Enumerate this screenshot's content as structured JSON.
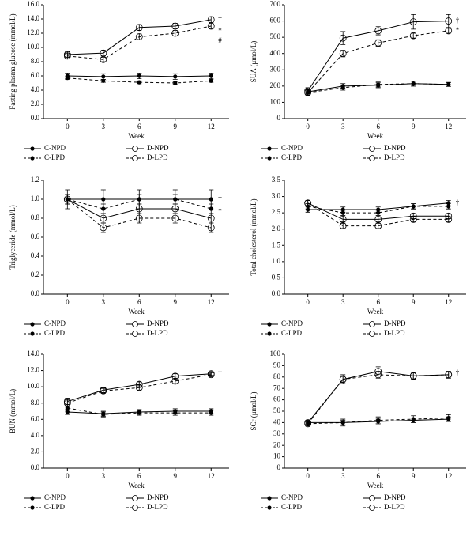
{
  "chart_data": [
    {
      "type": "line",
      "ylabel": "Fasting plasma glucose (mmol/L)",
      "xlabel": "Week",
      "x": [
        0,
        3,
        6,
        9,
        12
      ],
      "xlim": [
        -2,
        13.5
      ],
      "xticks": [
        0,
        3,
        6,
        9,
        12
      ],
      "ylim": [
        0,
        16
      ],
      "yticks": [
        {
          "value": 0,
          "label": "0.0"
        },
        {
          "value": 2,
          "label": "2.0"
        },
        {
          "value": 4,
          "label": "4.0"
        },
        {
          "value": 6,
          "label": "6.0"
        },
        {
          "value": 8,
          "label": "8.0"
        },
        {
          "value": 10,
          "label": "10.0"
        },
        {
          "value": 12,
          "label": "12.0"
        },
        {
          "value": 14,
          "label": "14.0"
        },
        {
          "value": 16,
          "label": "16.0"
        }
      ],
      "series": [
        {
          "name": "C-NPD",
          "color": "#000000",
          "line_style": "solid",
          "marker": "filled",
          "values": [
            6.0,
            5.9,
            6.0,
            5.9,
            6.0
          ],
          "errors": [
            0.4,
            0.4,
            0.4,
            0.4,
            0.4
          ]
        },
        {
          "name": "D-NPD",
          "color": "#000000",
          "line_style": "solid",
          "marker": "open",
          "values": [
            9.0,
            9.2,
            12.8,
            13.0,
            13.9
          ],
          "errors": [
            0.4,
            0.4,
            0.4,
            0.4,
            0.4
          ]
        },
        {
          "name": "C-LPD",
          "color": "#000000",
          "line_style": "dashed",
          "marker": "filled",
          "values": [
            5.7,
            5.3,
            5.1,
            5.0,
            5.3
          ],
          "errors": [
            0.2,
            0.2,
            0.2,
            0.2,
            0.2
          ]
        },
        {
          "name": "D-LPD",
          "color": "#000000",
          "line_style": "dashed",
          "marker": "open",
          "values": [
            8.8,
            8.3,
            11.5,
            12.0,
            13.0
          ],
          "errors": [
            0.4,
            0.3,
            0.4,
            0.4,
            0.4
          ]
        }
      ],
      "annotations": [
        "†",
        "*",
        "#"
      ]
    },
    {
      "type": "line",
      "ylabel": "SUA (μmol/L)",
      "xlabel": "Week",
      "x": [
        0,
        3,
        6,
        9,
        12
      ],
      "xlim": [
        -2,
        13.5
      ],
      "xticks": [
        0,
        3,
        6,
        9,
        12
      ],
      "ylim": [
        0,
        700
      ],
      "yticks": [
        0,
        100,
        200,
        300,
        400,
        500,
        600,
        700
      ],
      "series": [
        {
          "name": "C-NPD",
          "color": "#000000",
          "line_style": "solid",
          "marker": "filled",
          "values": [
            165,
            200,
            205,
            215,
            210
          ],
          "errors": [
            15,
            15,
            15,
            15,
            12
          ]
        },
        {
          "name": "D-NPD",
          "color": "#000000",
          "line_style": "solid",
          "marker": "open",
          "values": [
            170,
            495,
            540,
            595,
            600
          ],
          "errors": [
            20,
            40,
            25,
            45,
            40
          ]
        },
        {
          "name": "C-LPD",
          "color": "#000000",
          "line_style": "dashed",
          "marker": "filled",
          "values": [
            160,
            190,
            210,
            215,
            210
          ],
          "errors": [
            15,
            15,
            15,
            15,
            12
          ]
        },
        {
          "name": "D-LPD",
          "color": "#000000",
          "line_style": "dashed",
          "marker": "open",
          "values": [
            160,
            400,
            465,
            510,
            540
          ],
          "errors": [
            20,
            20,
            20,
            15,
            15
          ]
        }
      ],
      "annotations": [
        "†",
        "*"
      ]
    },
    {
      "type": "line",
      "ylabel": "Triglyceride (mmol/L)",
      "xlabel": "Week",
      "x": [
        0,
        3,
        6,
        9,
        12
      ],
      "xlim": [
        -2,
        13.5
      ],
      "xticks": [
        0,
        3,
        6,
        9,
        12
      ],
      "ylim": [
        0,
        1.2
      ],
      "yticks": [
        {
          "value": 0,
          "label": "0.0"
        },
        {
          "value": 0.2,
          "label": "0.2"
        },
        {
          "value": 0.4,
          "label": "0.4"
        },
        {
          "value": 0.6,
          "label": "0.6"
        },
        {
          "value": 0.8,
          "label": "0.8"
        },
        {
          "value": 1,
          "label": "1.0"
        },
        {
          "value": 1.2,
          "label": "1.2"
        }
      ],
      "series": [
        {
          "name": "C-NPD",
          "color": "#000000",
          "line_style": "solid",
          "marker": "filled",
          "values": [
            1.0,
            1.0,
            1.0,
            1.0,
            1.0
          ],
          "errors": [
            0.1,
            0.1,
            0.1,
            0.1,
            0.1
          ]
        },
        {
          "name": "D-NPD",
          "color": "#000000",
          "line_style": "solid",
          "marker": "open",
          "values": [
            1.0,
            0.8,
            0.9,
            0.9,
            0.8
          ],
          "errors": [
            0.05,
            0.05,
            0.05,
            0.05,
            0.05
          ]
        },
        {
          "name": "C-LPD",
          "color": "#000000",
          "line_style": "dashed",
          "marker": "filled",
          "values": [
            1.0,
            0.9,
            1.0,
            1.0,
            0.9
          ],
          "errors": [
            0.05,
            0.05,
            0.05,
            0.05,
            0.05
          ]
        },
        {
          "name": "D-LPD",
          "color": "#000000",
          "line_style": "dashed",
          "marker": "open",
          "values": [
            1.0,
            0.7,
            0.8,
            0.8,
            0.7
          ],
          "errors": [
            0.05,
            0.05,
            0.05,
            0.05,
            0.05
          ]
        }
      ],
      "annotations": [
        "†",
        "*"
      ]
    },
    {
      "type": "line",
      "ylabel": "Total cholesterol (mmol/L)",
      "xlabel": "Week",
      "x": [
        0,
        3,
        6,
        9,
        12
      ],
      "xlim": [
        -2,
        13.5
      ],
      "xticks": [
        0,
        3,
        6,
        9,
        12
      ],
      "ylim": [
        0,
        3.5
      ],
      "yticks": [
        {
          "value": 0,
          "label": "0.0"
        },
        {
          "value": 0.5,
          "label": "0.5"
        },
        {
          "value": 1,
          "label": "1.0"
        },
        {
          "value": 1.5,
          "label": "1.5"
        },
        {
          "value": 2,
          "label": "2.0"
        },
        {
          "value": 2.5,
          "label": "2.5"
        },
        {
          "value": 3,
          "label": "3.0"
        },
        {
          "value": 3.5,
          "label": "3.5"
        }
      ],
      "series": [
        {
          "name": "C-NPD",
          "color": "#000000",
          "line_style": "solid",
          "marker": "filled",
          "values": [
            2.6,
            2.6,
            2.6,
            2.7,
            2.8
          ],
          "errors": [
            0.08,
            0.08,
            0.08,
            0.08,
            0.08
          ]
        },
        {
          "name": "D-NPD",
          "color": "#000000",
          "line_style": "solid",
          "marker": "open",
          "values": [
            2.8,
            2.3,
            2.3,
            2.4,
            2.4
          ],
          "errors": [
            0.08,
            0.08,
            0.08,
            0.08,
            0.08
          ]
        },
        {
          "name": "C-LPD",
          "color": "#000000",
          "line_style": "dashed",
          "marker": "filled",
          "values": [
            2.7,
            2.5,
            2.5,
            2.7,
            2.7
          ],
          "errors": [
            0.08,
            0.08,
            0.08,
            0.08,
            0.08
          ]
        },
        {
          "name": "D-LPD",
          "color": "#000000",
          "line_style": "dashed",
          "marker": "open",
          "values": [
            2.8,
            2.1,
            2.1,
            2.3,
            2.3
          ],
          "errors": [
            0.08,
            0.08,
            0.08,
            0.08,
            0.08
          ]
        }
      ],
      "annotations": [
        "†"
      ]
    },
    {
      "type": "line",
      "ylabel": "BUN (mmol/L)",
      "xlabel": "Week",
      "x": [
        0,
        3,
        6,
        9,
        12
      ],
      "xlim": [
        -2,
        13.5
      ],
      "xticks": [
        0,
        3,
        6,
        9,
        12
      ],
      "ylim": [
        0,
        14
      ],
      "yticks": [
        {
          "value": 0,
          "label": "0.0"
        },
        {
          "value": 2,
          "label": "2.0"
        },
        {
          "value": 4,
          "label": "4.0"
        },
        {
          "value": 6,
          "label": "6.0"
        },
        {
          "value": 8,
          "label": "8.0"
        },
        {
          "value": 10,
          "label": "10.0"
        },
        {
          "value": 12,
          "label": "12.0"
        },
        {
          "value": 14,
          "label": "14.0"
        }
      ],
      "series": [
        {
          "name": "C-NPD",
          "color": "#000000",
          "line_style": "solid",
          "marker": "filled",
          "values": [
            6.9,
            6.7,
            6.9,
            7.0,
            7.0
          ],
          "errors": [
            0.3,
            0.3,
            0.3,
            0.3,
            0.3
          ]
        },
        {
          "name": "D-NPD",
          "color": "#000000",
          "line_style": "solid",
          "marker": "open",
          "values": [
            8.2,
            9.6,
            10.3,
            11.3,
            11.6
          ],
          "errors": [
            0.4,
            0.3,
            0.3,
            0.3,
            0.2
          ]
        },
        {
          "name": "C-LPD",
          "color": "#000000",
          "line_style": "dashed",
          "marker": "filled",
          "values": [
            7.4,
            6.6,
            6.8,
            6.8,
            6.8
          ],
          "errors": [
            0.4,
            0.3,
            0.3,
            0.3,
            0.3
          ]
        },
        {
          "name": "D-LPD",
          "color": "#000000",
          "line_style": "dashed",
          "marker": "open",
          "values": [
            8.0,
            9.5,
            9.9,
            10.7,
            11.5
          ],
          "errors": [
            0.4,
            0.3,
            0.3,
            0.3,
            0.2
          ]
        }
      ],
      "annotations": [
        "†"
      ]
    },
    {
      "type": "line",
      "ylabel": "SCr (μmol/L)",
      "xlabel": "Week",
      "x": [
        0,
        3,
        6,
        9,
        12
      ],
      "xlim": [
        -2,
        13.5
      ],
      "xticks": [
        0,
        3,
        6,
        9,
        12
      ],
      "ylim": [
        0,
        100
      ],
      "yticks": [
        0,
        10,
        20,
        30,
        40,
        50,
        60,
        70,
        80,
        90,
        100
      ],
      "series": [
        {
          "name": "C-NPD",
          "color": "#000000",
          "line_style": "solid",
          "marker": "filled",
          "values": [
            40,
            40,
            41,
            42,
            43
          ],
          "errors": [
            2,
            2,
            2,
            2,
            2
          ]
        },
        {
          "name": "D-NPD",
          "color": "#000000",
          "line_style": "solid",
          "marker": "open",
          "values": [
            40,
            78,
            85,
            81,
            82
          ],
          "errors": [
            2,
            4,
            4,
            3,
            3
          ]
        },
        {
          "name": "C-LPD",
          "color": "#000000",
          "line_style": "dashed",
          "marker": "filled",
          "values": [
            39,
            40,
            42,
            43,
            44
          ],
          "errors": [
            2,
            3,
            3,
            3,
            3
          ]
        },
        {
          "name": "D-LPD",
          "color": "#000000",
          "line_style": "dashed",
          "marker": "open",
          "values": [
            39,
            78,
            82,
            81,
            82
          ],
          "errors": [
            2,
            3,
            3,
            3,
            3
          ]
        }
      ],
      "annotations": [
        "†"
      ]
    }
  ]
}
